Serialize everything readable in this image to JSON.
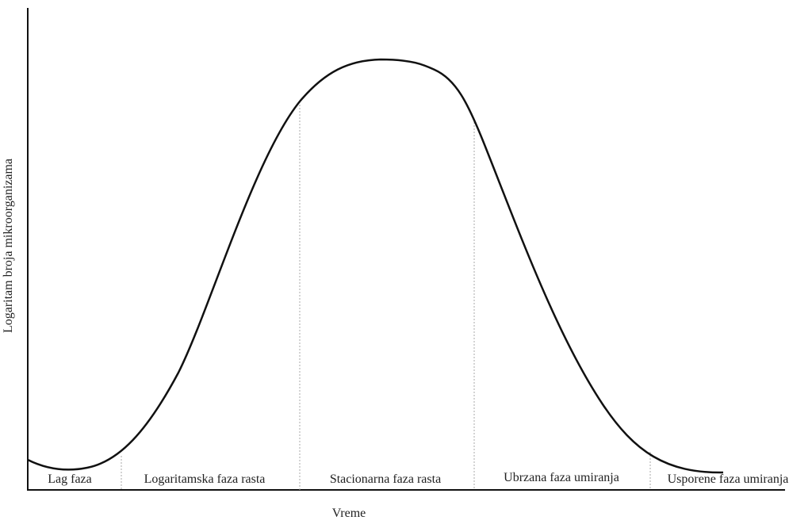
{
  "axes": {
    "y_label": "Logaritam broja mikroorganizama",
    "x_label": "Vreme"
  },
  "phases": [
    {
      "label": "Lag faza"
    },
    {
      "label": "Logaritamska faza rasta"
    },
    {
      "label": "Stacionarna faza rasta"
    },
    {
      "label": "Ubrzana faza umiranja"
    },
    {
      "label": "Usporene faza umiranja"
    }
  ]
}
